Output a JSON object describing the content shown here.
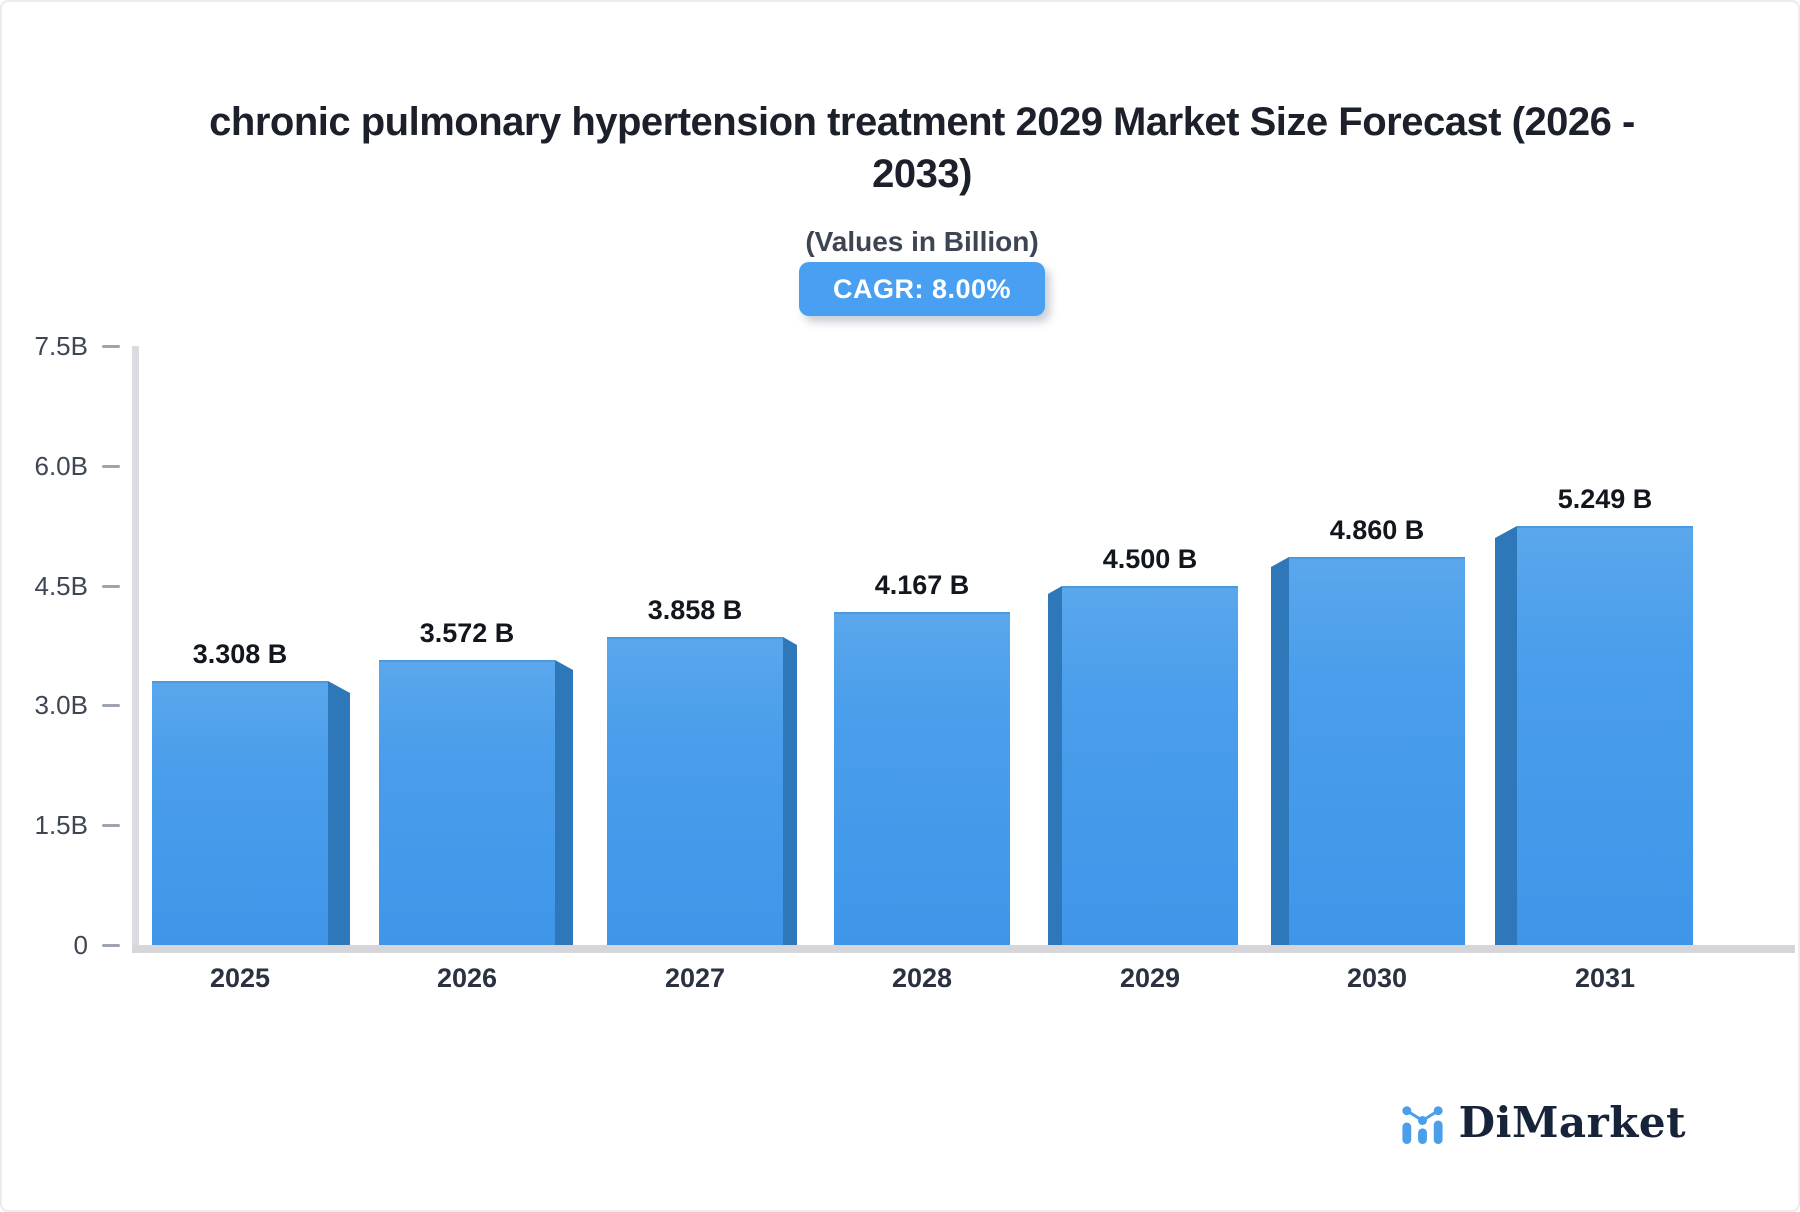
{
  "header": {
    "title_line1": "chronic pulmonary hypertension treatment 2029 Market Size Forecast (2026 -",
    "title_line2": "2033)",
    "subtitle": "(Values in Billion)",
    "cagr_label": "CAGR: 8.00%"
  },
  "chart_data": {
    "type": "bar",
    "title": "chronic pulmonary hypertension treatment 2029 Market Size Forecast (2026 - 2033)",
    "subtitle": "(Values in Billion)",
    "cagr": "8.00%",
    "unit": "Billion",
    "categories": [
      "2025",
      "2026",
      "2027",
      "2028",
      "2029",
      "2030",
      "2031"
    ],
    "values": [
      3.308,
      3.572,
      3.858,
      4.167,
      4.5,
      4.86,
      5.249
    ],
    "value_labels": [
      "3.308 B",
      "3.572 B",
      "3.858 B",
      "4.167 B",
      "4.500 B",
      "4.860 B",
      "5.249 B"
    ],
    "xlabel": "",
    "ylabel": "",
    "ylim": [
      0,
      7.5
    ],
    "y_ticks": [
      {
        "label": "7.5B",
        "value": 7.5
      },
      {
        "label": "6.0B",
        "value": 6.0
      },
      {
        "label": "4.5B",
        "value": 4.5
      },
      {
        "label": "3.0B",
        "value": 3.0
      },
      {
        "label": "1.5B",
        "value": 1.5
      },
      {
        "label": "0",
        "value": 0
      }
    ],
    "grid": false,
    "legend": false,
    "bar_color_top": "#5aa7ec",
    "bar_color_bottom": "#3f96e9",
    "bar_side_color": "#2e77b8",
    "axis_color": "#dcdce0",
    "style": "3d-perspective-bars"
  },
  "logo": {
    "text": "DiMarket",
    "icon": "bar-line-chart-icon",
    "icon_color": "#4a9eea",
    "text_color": "#172339"
  }
}
